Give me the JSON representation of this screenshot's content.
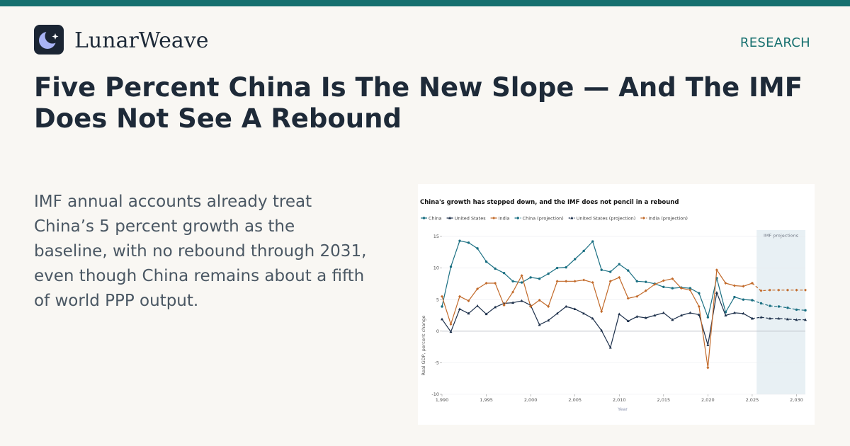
{
  "brand": {
    "name": "LunarWeave",
    "logo_icon": "crescent-moon-sparkle-icon"
  },
  "section_label": "RESEARCH",
  "headline": "Five Percent China Is The New Slope — And The IMF Does Not See A Rebound",
  "summary": "IMF annual accounts already treat China’s 5 percent growth as the baseline, with no rebound through 2031, even though China remains about a fifth of world PPP output.",
  "colors": {
    "accent": "#17706f",
    "china": "#1a6f82",
    "united_states": "#1c2f4a",
    "india": "#c26a2a",
    "projection_band": "#e8f0f4"
  },
  "chart_data": {
    "type": "line",
    "title": "China's growth has stepped down, and the IMF does not pencil in a rebound",
    "xlabel": "Year",
    "ylabel": "Real GDP, percent change",
    "xlim": [
      1990,
      2031
    ],
    "ylim": [
      -10,
      16
    ],
    "x_ticks": [
      1990,
      1995,
      2000,
      2005,
      2010,
      2015,
      2020,
      2025,
      2030
    ],
    "x_tick_labels": [
      "1,990",
      "1,995",
      "2,000",
      "2,005",
      "2,010",
      "2,015",
      "2,020",
      "2,025",
      "2,030"
    ],
    "y_ticks": [
      -10,
      -5,
      0,
      5,
      10,
      15
    ],
    "y_tick_labels": [
      "-10",
      "-5",
      "0",
      "5",
      "10",
      "15"
    ],
    "grid": true,
    "legend_position": "top-left",
    "projection_band": {
      "label": "IMF projections",
      "from": 2025.5,
      "to": 2031
    },
    "series": [
      {
        "name": "China",
        "color": "#1a6f82",
        "marker": "circle",
        "style": "solid",
        "x": [
          1990,
          1991,
          1992,
          1993,
          1994,
          1995,
          1996,
          1997,
          1998,
          1999,
          2000,
          2001,
          2002,
          2003,
          2004,
          2005,
          2006,
          2007,
          2008,
          2009,
          2010,
          2011,
          2012,
          2013,
          2014,
          2015,
          2016,
          2017,
          2018,
          2019,
          2020,
          2021,
          2022,
          2023,
          2024,
          2025
        ],
        "values": [
          3.9,
          10.2,
          14.3,
          14.0,
          13.1,
          11.0,
          9.9,
          9.2,
          7.9,
          7.7,
          8.5,
          8.3,
          9.1,
          10.0,
          10.1,
          11.4,
          12.7,
          14.2,
          9.7,
          9.4,
          10.6,
          9.6,
          7.9,
          7.8,
          7.5,
          7.0,
          6.8,
          6.9,
          6.8,
          6.0,
          2.2,
          8.4,
          3.0,
          5.4,
          5.0,
          4.9
        ]
      },
      {
        "name": "United States",
        "color": "#1c2f4a",
        "marker": "triangle",
        "style": "solid",
        "x": [
          1990,
          1991,
          1992,
          1993,
          1994,
          1995,
          1996,
          1997,
          1998,
          1999,
          2000,
          2001,
          2002,
          2003,
          2004,
          2005,
          2006,
          2007,
          2008,
          2009,
          2010,
          2011,
          2012,
          2013,
          2014,
          2015,
          2016,
          2017,
          2018,
          2019,
          2020,
          2021,
          2022,
          2023,
          2024,
          2025
        ],
        "values": [
          1.9,
          -0.1,
          3.5,
          2.8,
          4.0,
          2.7,
          3.8,
          4.4,
          4.5,
          4.8,
          4.1,
          1.0,
          1.7,
          2.8,
          3.9,
          3.5,
          2.8,
          2.0,
          0.1,
          -2.6,
          2.7,
          1.6,
          2.3,
          2.1,
          2.5,
          2.9,
          1.8,
          2.5,
          2.9,
          2.6,
          -2.2,
          6.1,
          2.5,
          2.9,
          2.8,
          2.0
        ]
      },
      {
        "name": "India",
        "color": "#c26a2a",
        "marker": "diamond",
        "style": "solid",
        "x": [
          1990,
          1991,
          1992,
          1993,
          1994,
          1995,
          1996,
          1997,
          1998,
          1999,
          2000,
          2001,
          2002,
          2003,
          2004,
          2005,
          2006,
          2007,
          2008,
          2009,
          2010,
          2011,
          2012,
          2013,
          2014,
          2015,
          2016,
          2017,
          2018,
          2019,
          2020,
          2021,
          2022,
          2023,
          2024,
          2025
        ],
        "values": [
          5.5,
          1.1,
          5.5,
          4.8,
          6.7,
          7.6,
          7.6,
          4.1,
          6.2,
          8.8,
          3.9,
          4.9,
          3.9,
          7.9,
          7.9,
          7.9,
          8.1,
          7.7,
          3.1,
          7.9,
          8.5,
          5.2,
          5.5,
          6.4,
          7.4,
          8.0,
          8.3,
          6.8,
          6.5,
          3.9,
          -5.8,
          9.7,
          7.6,
          7.2,
          7.1,
          7.6
        ]
      },
      {
        "name": "China (projection)",
        "color": "#1a6f82",
        "marker": "circle",
        "style": "dashed",
        "x": [
          2025,
          2026,
          2027,
          2028,
          2029,
          2030,
          2031
        ],
        "values": [
          4.9,
          4.4,
          4.0,
          3.9,
          3.7,
          3.4,
          3.3
        ]
      },
      {
        "name": "United States (projection)",
        "color": "#1c2f4a",
        "marker": "triangle",
        "style": "dashed",
        "x": [
          2025,
          2026,
          2027,
          2028,
          2029,
          2030,
          2031
        ],
        "values": [
          2.0,
          2.2,
          2.0,
          2.0,
          1.9,
          1.8,
          1.8
        ]
      },
      {
        "name": "India (projection)",
        "color": "#c26a2a",
        "marker": "diamond",
        "style": "dashed",
        "x": [
          2025,
          2026,
          2027,
          2028,
          2029,
          2030,
          2031
        ],
        "values": [
          7.6,
          6.4,
          6.5,
          6.5,
          6.5,
          6.5,
          6.5
        ]
      }
    ]
  }
}
